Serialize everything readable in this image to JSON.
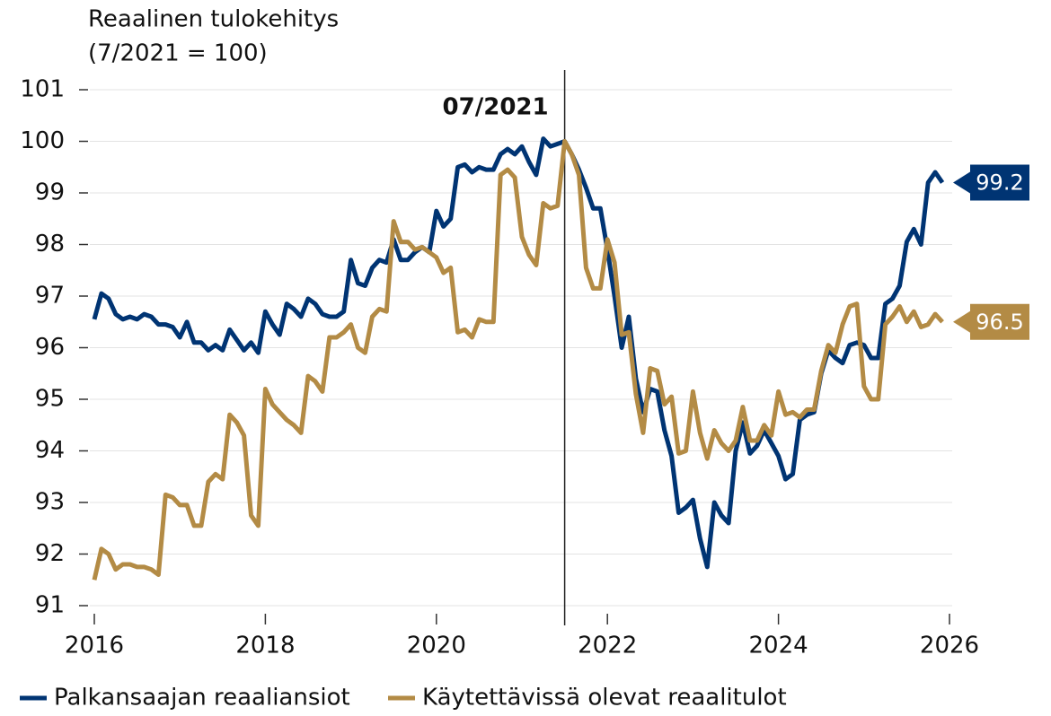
{
  "chart_data": {
    "type": "line",
    "title": "Reaalinen tulokehitys",
    "subtitle": "(7/2021 = 100)",
    "x": [
      2016,
      2016.083,
      2016.167,
      2016.25,
      2016.333,
      2016.417,
      2016.5,
      2016.583,
      2016.667,
      2016.75,
      2016.833,
      2016.917,
      2017,
      2017.083,
      2017.167,
      2017.25,
      2017.333,
      2017.417,
      2017.5,
      2017.583,
      2017.667,
      2017.75,
      2017.833,
      2017.917,
      2018,
      2018.083,
      2018.167,
      2018.25,
      2018.333,
      2018.417,
      2018.5,
      2018.583,
      2018.667,
      2018.75,
      2018.833,
      2018.917,
      2019,
      2019.083,
      2019.167,
      2019.25,
      2019.333,
      2019.417,
      2019.5,
      2019.583,
      2019.667,
      2019.75,
      2019.833,
      2019.917,
      2020,
      2020.083,
      2020.167,
      2020.25,
      2020.333,
      2020.417,
      2020.5,
      2020.583,
      2020.667,
      2020.75,
      2020.833,
      2020.917,
      2021,
      2021.083,
      2021.167,
      2021.25,
      2021.333,
      2021.417,
      2021.5,
      2021.583,
      2021.667,
      2021.75,
      2021.833,
      2021.917,
      2022,
      2022.083,
      2022.167,
      2022.25,
      2022.333,
      2022.417,
      2022.5,
      2022.583,
      2022.667,
      2022.75,
      2022.833,
      2022.917,
      2023,
      2023.083,
      2023.167,
      2023.25,
      2023.333,
      2023.417,
      2023.5,
      2023.583,
      2023.667,
      2023.75,
      2023.833,
      2023.917,
      2024,
      2024.083,
      2024.167,
      2024.25,
      2024.333,
      2024.417,
      2024.5,
      2024.583,
      2024.667,
      2024.75,
      2024.833,
      2024.917,
      2025,
      2025.083,
      2025.167,
      2025.25,
      2025.333,
      2025.417,
      2025.5,
      2025.583,
      2025.667,
      2025.75,
      2025.833,
      2025.917
    ],
    "series": [
      {
        "name": "Palkansaajan reaaliansiot",
        "color": "#003473",
        "values": [
          96.55,
          97.05,
          96.95,
          96.65,
          96.55,
          96.6,
          96.55,
          96.65,
          96.6,
          96.45,
          96.45,
          96.4,
          96.2,
          96.5,
          96.1,
          96.1,
          95.95,
          96.05,
          95.95,
          96.35,
          96.15,
          95.95,
          96.1,
          95.9,
          96.7,
          96.45,
          96.25,
          96.85,
          96.75,
          96.6,
          96.95,
          96.85,
          96.65,
          96.6,
          96.6,
          96.7,
          97.7,
          97.25,
          97.2,
          97.55,
          97.7,
          97.65,
          98.1,
          97.7,
          97.7,
          97.85,
          97.95,
          97.85,
          98.65,
          98.35,
          98.5,
          99.5,
          99.55,
          99.4,
          99.5,
          99.45,
          99.45,
          99.75,
          99.85,
          99.75,
          99.9,
          99.6,
          99.35,
          100.05,
          99.9,
          99.95,
          100,
          99.75,
          99.45,
          99.1,
          98.7,
          98.7,
          97.9,
          97.0,
          96.0,
          96.6,
          95.4,
          94.75,
          95.2,
          95.15,
          94.4,
          93.9,
          92.8,
          92.9,
          93.05,
          92.3,
          91.75,
          93.0,
          92.75,
          92.6,
          94.0,
          94.55,
          93.95,
          94.1,
          94.4,
          94.15,
          93.9,
          93.45,
          93.55,
          94.6,
          94.7,
          94.75,
          95.5,
          95.95,
          95.8,
          95.7,
          96.05,
          96.1,
          96.05,
          95.8,
          95.8,
          96.85,
          96.95,
          97.2,
          98.05,
          98.3,
          98.0,
          99.2,
          99.4,
          99.2
        ]
      },
      {
        "name": "Käytettävissä olevat reaalitulot",
        "color": "#b38b45",
        "values": [
          91.5,
          92.1,
          92.0,
          91.7,
          91.8,
          91.8,
          91.75,
          91.75,
          91.7,
          91.6,
          93.15,
          93.1,
          92.95,
          92.95,
          92.55,
          92.55,
          93.4,
          93.55,
          93.45,
          94.7,
          94.55,
          94.3,
          92.75,
          92.55,
          95.2,
          94.9,
          94.75,
          94.6,
          94.5,
          94.35,
          95.45,
          95.35,
          95.15,
          96.2,
          96.2,
          96.3,
          96.45,
          96.0,
          95.9,
          96.6,
          96.75,
          96.7,
          98.45,
          98.05,
          98.05,
          97.9,
          97.95,
          97.85,
          97.75,
          97.45,
          97.55,
          96.3,
          96.35,
          96.2,
          96.55,
          96.5,
          96.5,
          99.35,
          99.45,
          99.3,
          98.15,
          97.8,
          97.6,
          98.8,
          98.7,
          98.75,
          100,
          99.75,
          99.35,
          97.55,
          97.15,
          97.15,
          98.1,
          97.65,
          96.25,
          96.3,
          95.1,
          94.35,
          95.6,
          95.55,
          94.9,
          95.05,
          93.95,
          94.0,
          95.15,
          94.35,
          93.85,
          94.4,
          94.15,
          94.0,
          94.2,
          94.85,
          94.2,
          94.2,
          94.5,
          94.3,
          95.15,
          94.7,
          94.75,
          94.65,
          94.8,
          94.8,
          95.55,
          96.05,
          95.9,
          96.45,
          96.8,
          96.85,
          95.25,
          95.0,
          95.0,
          96.45,
          96.6,
          96.8,
          96.5,
          96.7,
          96.4,
          96.45,
          96.65,
          96.5
        ]
      }
    ],
    "xlim": [
      2016,
      2026
    ],
    "xticks": [
      2016,
      2018,
      2020,
      2022,
      2024,
      2026
    ],
    "ylim": [
      91,
      101
    ],
    "yticks": [
      91,
      92,
      93,
      94,
      95,
      96,
      97,
      98,
      99,
      100,
      101
    ],
    "grid": true,
    "legend": "bottom",
    "vline": {
      "x": 2021.5,
      "label": "07/2021"
    }
  }
}
